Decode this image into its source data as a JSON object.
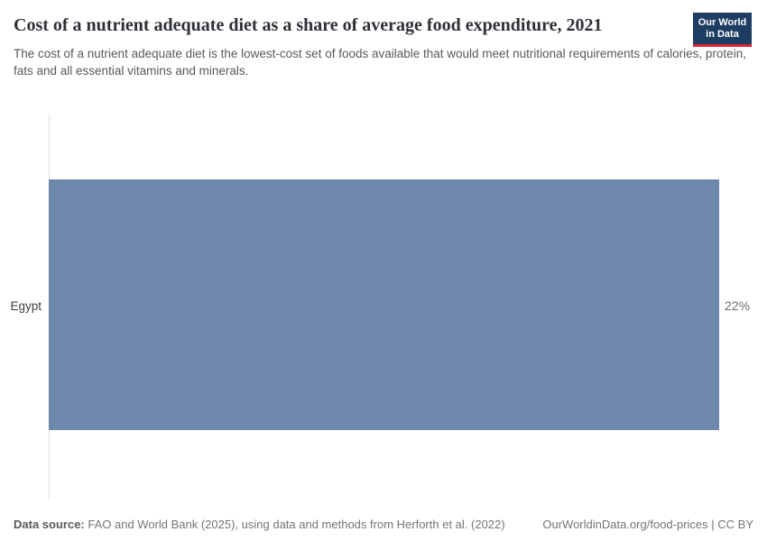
{
  "header": {
    "title": "Cost of a nutrient adequate diet as a share of average food expenditure, 2021",
    "subtitle": "The cost of a nutrient adequate diet is the lowest-cost set of foods available that would meet nutritional requirements of calories, protein, fats and all essential vitamins and minerals.",
    "logo": {
      "line1": "Our World",
      "line2": "in Data",
      "background_color": "#1d3d63",
      "accent_color": "#d7282f"
    }
  },
  "chart_data": {
    "type": "bar",
    "orientation": "horizontal",
    "title": "Cost of a nutrient adequate diet as a share of average food expenditure, 2021",
    "categories": [
      "Egypt"
    ],
    "values": [
      22
    ],
    "value_labels": [
      "22%"
    ],
    "unit": "%",
    "xlim": [
      0,
      22
    ],
    "grid": false,
    "legend": "none",
    "bar_color": "#6e87ad"
  },
  "footer": {
    "datasource_label": "Data source:",
    "datasource_value": " FAO and World Bank (2025), using data and methods from Herforth et al. (2022)",
    "link": "OurWorldinData.org/food-prices | CC BY"
  }
}
